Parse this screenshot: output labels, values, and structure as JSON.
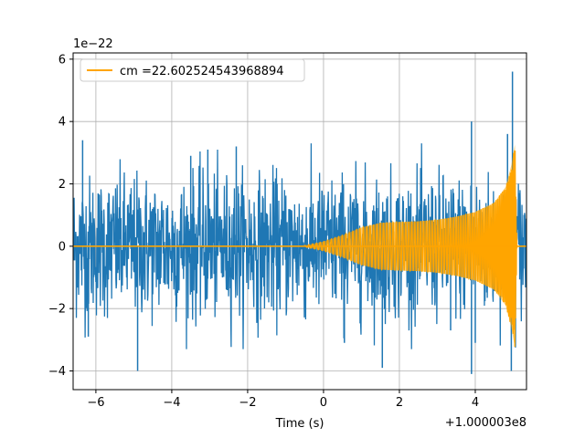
{
  "chart_data": {
    "type": "line",
    "title": "",
    "xlabel": "Time (s)",
    "ylabel": "",
    "x_offset_label": "+1.000003e8",
    "y_scale_label": "1e−22",
    "xlim": [
      -6.6,
      5.35
    ],
    "ylim": [
      -4.6,
      6.2
    ],
    "x_ticks": [
      -6,
      -4,
      -2,
      0,
      2,
      4
    ],
    "x_tick_labels": [
      "−6",
      "−4",
      "−2",
      "0",
      "2",
      "4"
    ],
    "y_ticks": [
      -4,
      -2,
      0,
      2,
      4,
      6
    ],
    "y_tick_labels": [
      "−4",
      "−2",
      "0",
      "2",
      "4",
      "6"
    ],
    "grid": true,
    "legend_position": "top-left",
    "series": [
      {
        "name": "",
        "color": "#1f77b4",
        "description": "noisy strain data",
        "typical_amplitude": 1.8,
        "peak_points": [
          {
            "x": -6.35,
            "y": 3.4
          },
          {
            "x": -6.2,
            "y": -2.9
          },
          {
            "x": -4.9,
            "y": -4.0
          },
          {
            "x": -3.5,
            "y": 2.9
          },
          {
            "x": -3.05,
            "y": 3.1
          },
          {
            "x": -2.3,
            "y": 3.2
          },
          {
            "x": 0.55,
            "y": -3.1
          },
          {
            "x": 1.55,
            "y": -3.9
          },
          {
            "x": 3.9,
            "y": 4.0
          },
          {
            "x": 3.9,
            "y": -4.1
          },
          {
            "x": 4.0,
            "y": -3.1
          },
          {
            "x": 4.85,
            "y": 3.6
          },
          {
            "x": 4.98,
            "y": 5.6
          },
          {
            "x": 4.95,
            "y": -4.0
          },
          {
            "x": 3.35,
            "y": -2.7
          }
        ]
      },
      {
        "name": "cm =22.602524543968894",
        "color": "#ffa500",
        "description": "matched-filter chirp template",
        "envelope": [
          {
            "x": -0.5,
            "y": 0.02
          },
          {
            "x": 0.0,
            "y": 0.15
          },
          {
            "x": 0.5,
            "y": 0.35
          },
          {
            "x": 1.0,
            "y": 0.6
          },
          {
            "x": 1.5,
            "y": 0.75
          },
          {
            "x": 2.0,
            "y": 0.78
          },
          {
            "x": 2.5,
            "y": 0.8
          },
          {
            "x": 3.0,
            "y": 0.85
          },
          {
            "x": 3.5,
            "y": 0.95
          },
          {
            "x": 4.0,
            "y": 1.1
          },
          {
            "x": 4.5,
            "y": 1.4
          },
          {
            "x": 4.8,
            "y": 1.9
          },
          {
            "x": 4.95,
            "y": 2.6
          },
          {
            "x": 5.05,
            "y": 3.3
          },
          {
            "x": 5.1,
            "y": 0.0
          }
        ]
      }
    ]
  }
}
